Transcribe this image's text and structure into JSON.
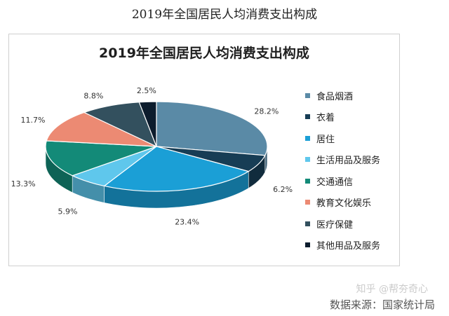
{
  "page": {
    "title": "2019年全国居民人均消费支出构成",
    "source": "数据来源：国家统计局",
    "watermark": "知乎 @帮夯奇心"
  },
  "chart_data": {
    "type": "pie",
    "title": "2019年全国居民人均消费支出构成",
    "legend_position": "right",
    "labels": [
      "食品烟酒",
      "衣着",
      "居住",
      "生活用品及服务",
      "交通通信",
      "教育文化娱乐",
      "医疗保健",
      "其他用品及服务"
    ],
    "values": [
      28.2,
      6.2,
      23.4,
      5.9,
      13.3,
      11.7,
      8.8,
      2.5
    ],
    "data_labels": [
      "28.2%",
      "6.2%",
      "23.4%",
      "5.9%",
      "13.3%",
      "11.7%",
      "8.8%",
      "2.5%"
    ],
    "colors": [
      "#5a8aa6",
      "#173d55",
      "#1b9fd6",
      "#5fc7ec",
      "#138a78",
      "#ec8a73",
      "#33505e",
      "#0c1c2d"
    ]
  }
}
